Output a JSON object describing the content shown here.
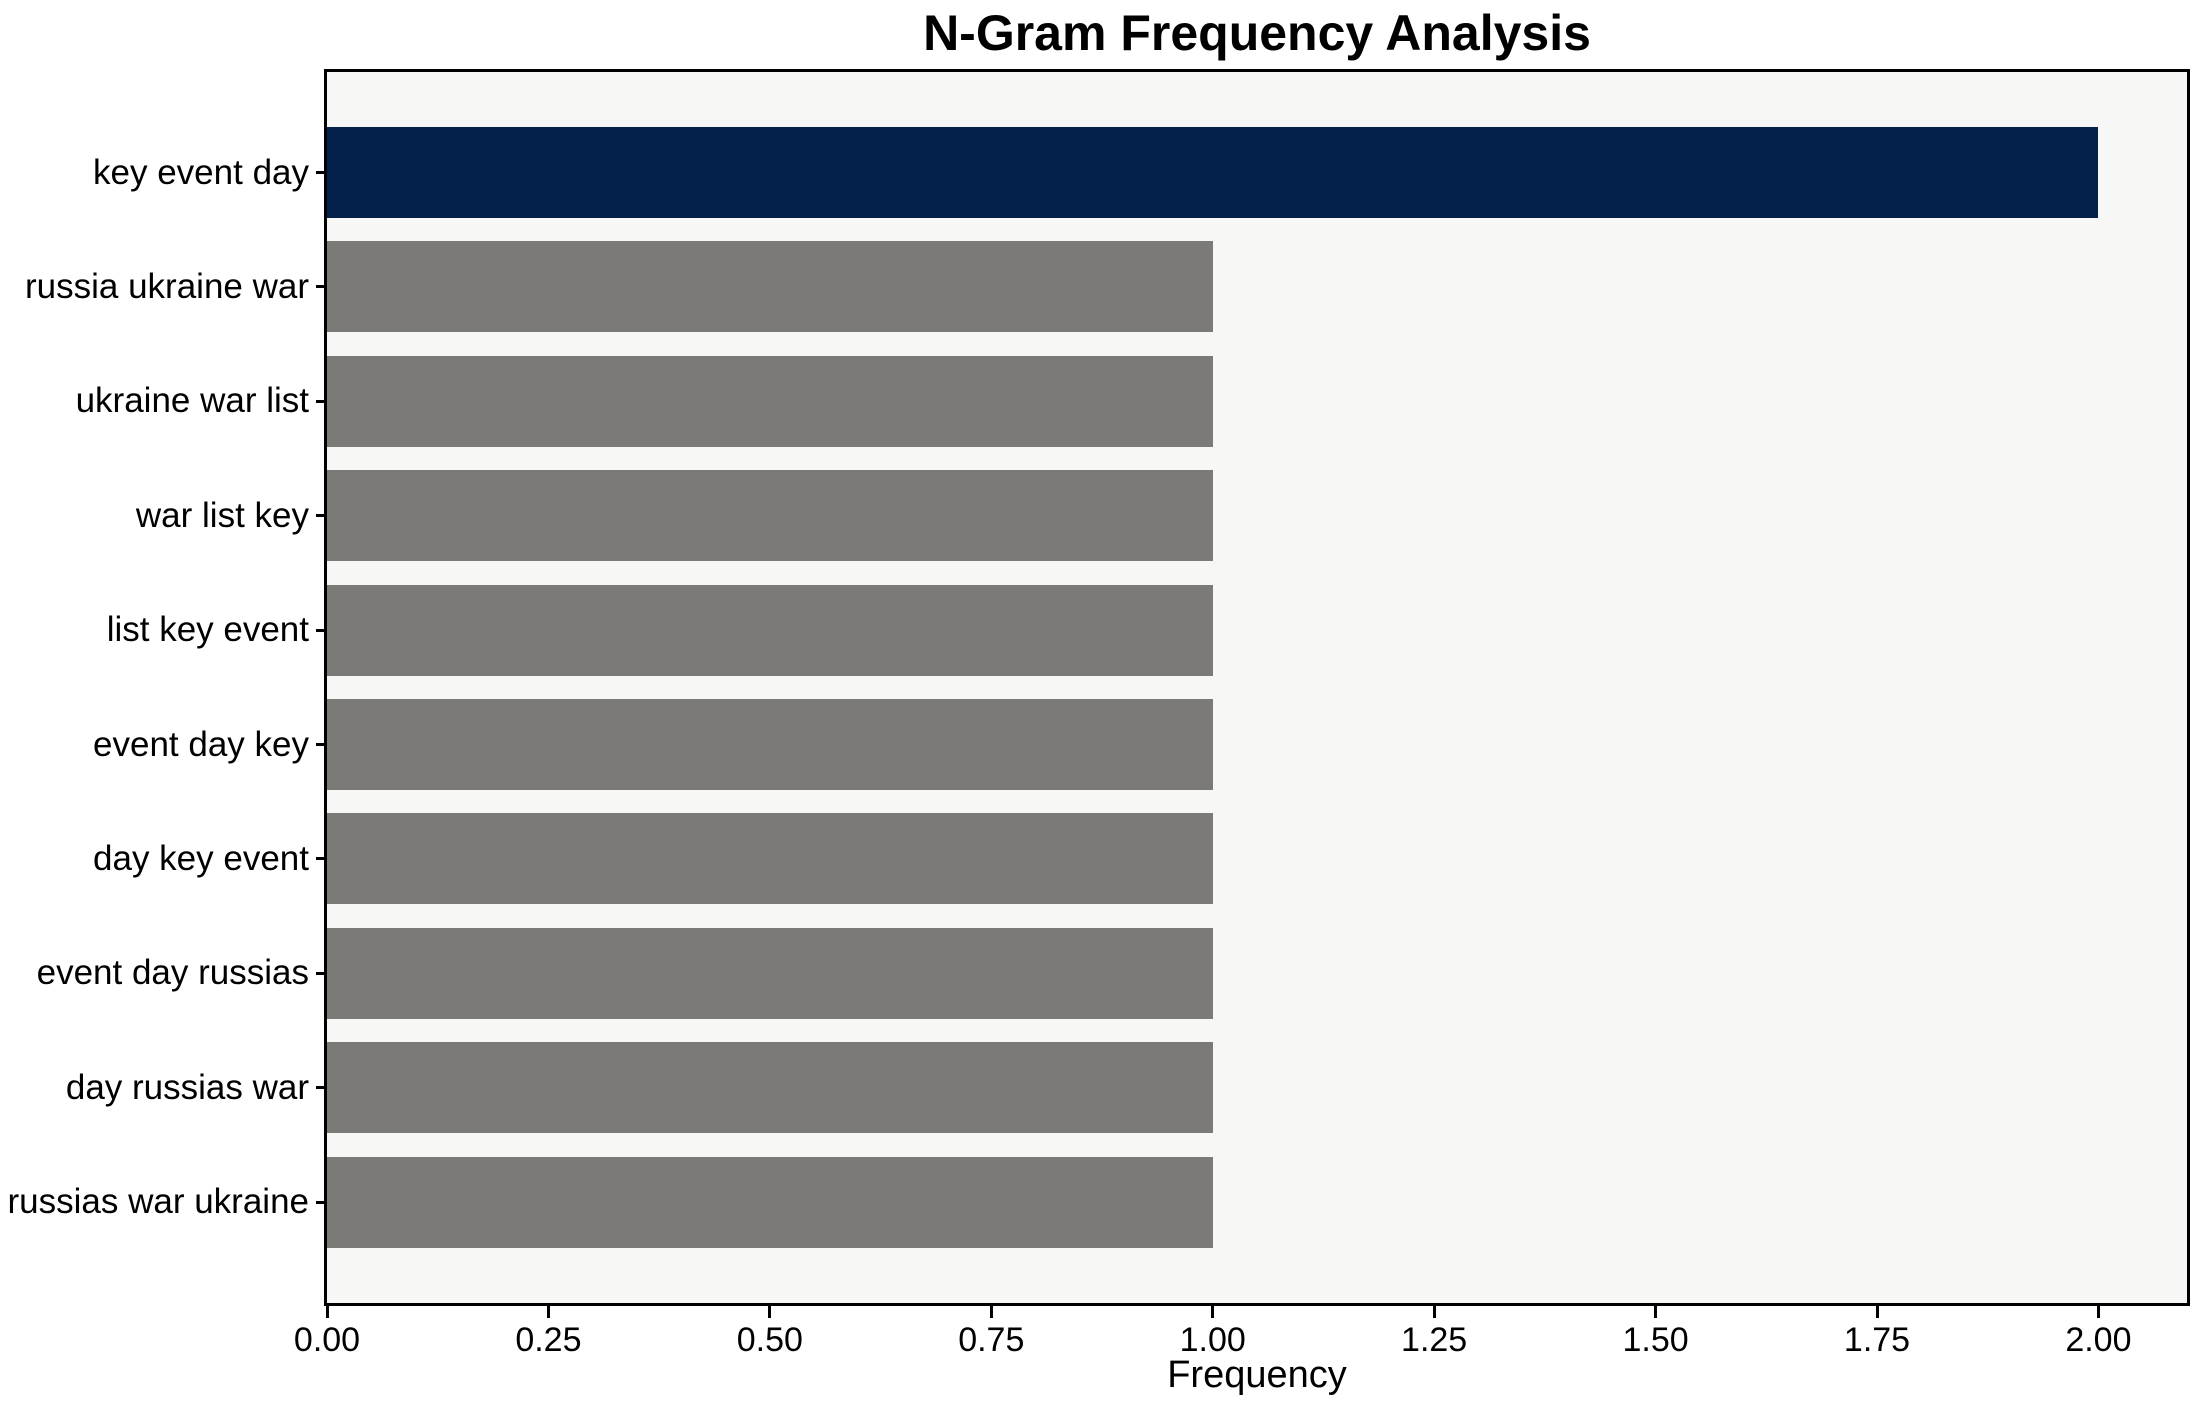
{
  "chart_data": {
    "type": "bar",
    "orientation": "horizontal",
    "title": "N-Gram Frequency Analysis",
    "xlabel": "Frequency",
    "ylabel": "",
    "categories": [
      "key event day",
      "russia ukraine war",
      "ukraine war list",
      "war list key",
      "list key event",
      "event day key",
      "day key event",
      "event day russias",
      "day russias war",
      "russias war ukraine"
    ],
    "values": [
      2,
      1,
      1,
      1,
      1,
      1,
      1,
      1,
      1,
      1
    ],
    "highlight_index": 0,
    "xlim": [
      0,
      2.1
    ],
    "xtick_values": [
      0,
      0.25,
      0.5,
      0.75,
      1.0,
      1.25,
      1.5,
      1.75,
      2.0
    ],
    "xtick_labels": [
      "0.00",
      "0.25",
      "0.50",
      "0.75",
      "1.00",
      "1.25",
      "1.50",
      "1.75",
      "2.00"
    ],
    "grid": false,
    "legend": null,
    "colors": {
      "highlight_bar": "#03214a",
      "default_bar": "#7b7a76",
      "plot_background": "#f7f7f6",
      "figure_background": "#ffffff",
      "axis": "#000000",
      "text": "#000000"
    }
  }
}
